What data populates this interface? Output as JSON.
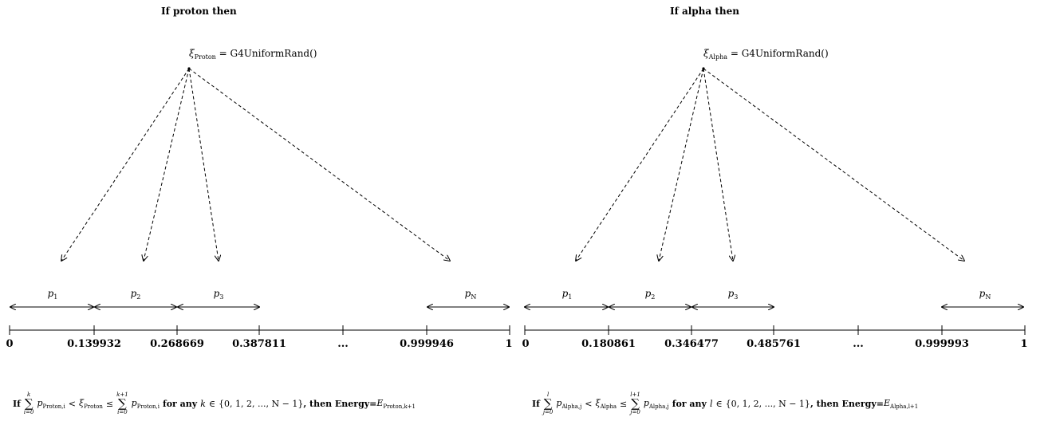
{
  "panels": [
    {
      "title": "If proton then",
      "xi_sub": "Proton",
      "rand": "G4UniformRand()",
      "p_labels": [
        {
          "base": "p",
          "sub": "1"
        },
        {
          "base": "p",
          "sub": "2"
        },
        {
          "base": "p",
          "sub": "3"
        },
        {
          "base": "p",
          "sub": "N"
        }
      ],
      "ticks": [
        "0",
        "0.139932",
        "0.268669",
        "0.387811",
        "...",
        "0.999946",
        "1"
      ],
      "condition": {
        "prefix": "If",
        "idx": "i",
        "lower": "i=0",
        "upper1": "k",
        "upper2": "k+1",
        "p_sub": "Proton,i",
        "xi_sub": "Proton",
        "mid": "for any",
        "var": "k",
        "set": "{0, 1, 2, ..., N − 1}",
        "suffix": ", then Energy=",
        "energy_sub": "Proton,k+1"
      }
    },
    {
      "title": "If alpha then",
      "xi_sub": "Alpha",
      "rand": "G4UniformRand()",
      "p_labels": [
        {
          "base": "p",
          "sub": "1"
        },
        {
          "base": "p",
          "sub": "2"
        },
        {
          "base": "p",
          "sub": "3"
        },
        {
          "base": "p",
          "sub": "N"
        }
      ],
      "ticks": [
        "0",
        "0.180861",
        "0.346477",
        "0.485761",
        "...",
        "0.999993",
        "1"
      ],
      "condition": {
        "prefix": "If",
        "idx": "j",
        "lower": "j=0",
        "upper1": "l",
        "upper2": "l+1",
        "p_sub": "Alpha,j",
        "xi_sub": "Alpha",
        "mid": "for any",
        "var": "l",
        "set": "{0, 1, 2, ..., N − 1}",
        "suffix": ", then Energy=",
        "energy_sub": "Alpha,l+1"
      }
    }
  ],
  "symbols": {
    "xi": "ξ",
    "equals": "=",
    "lt": "<",
    "le": "≤",
    "in": "∈",
    "E": "E",
    "p": "p",
    "sigma": "∑"
  }
}
